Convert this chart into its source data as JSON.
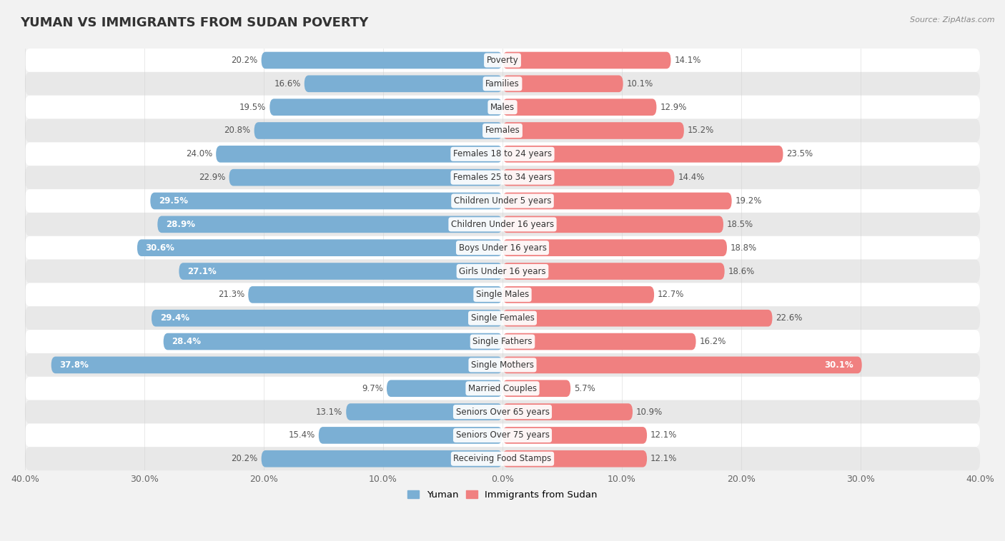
{
  "title": "YUMAN VS IMMIGRANTS FROM SUDAN POVERTY",
  "source": "Source: ZipAtlas.com",
  "categories": [
    "Poverty",
    "Families",
    "Males",
    "Females",
    "Females 18 to 24 years",
    "Females 25 to 34 years",
    "Children Under 5 years",
    "Children Under 16 years",
    "Boys Under 16 years",
    "Girls Under 16 years",
    "Single Males",
    "Single Females",
    "Single Fathers",
    "Single Mothers",
    "Married Couples",
    "Seniors Over 65 years",
    "Seniors Over 75 years",
    "Receiving Food Stamps"
  ],
  "yuman_values": [
    20.2,
    16.6,
    19.5,
    20.8,
    24.0,
    22.9,
    29.5,
    28.9,
    30.6,
    27.1,
    21.3,
    29.4,
    28.4,
    37.8,
    9.7,
    13.1,
    15.4,
    20.2
  ],
  "sudan_values": [
    14.1,
    10.1,
    12.9,
    15.2,
    23.5,
    14.4,
    19.2,
    18.5,
    18.8,
    18.6,
    12.7,
    22.6,
    16.2,
    30.1,
    5.7,
    10.9,
    12.1,
    12.1
  ],
  "yuman_color": "#7bafd4",
  "sudan_color": "#f08080",
  "background_color": "#f2f2f2",
  "row_even_color": "#ffffff",
  "row_odd_color": "#e8e8e8",
  "xlim": 40.0,
  "bar_height": 0.72,
  "legend_yuman": "Yuman",
  "legend_sudan": "Immigrants from Sudan",
  "title_fontsize": 13,
  "label_fontsize": 8.5,
  "value_fontsize": 8.5,
  "axis_fontsize": 9,
  "inside_threshold": 25.0
}
